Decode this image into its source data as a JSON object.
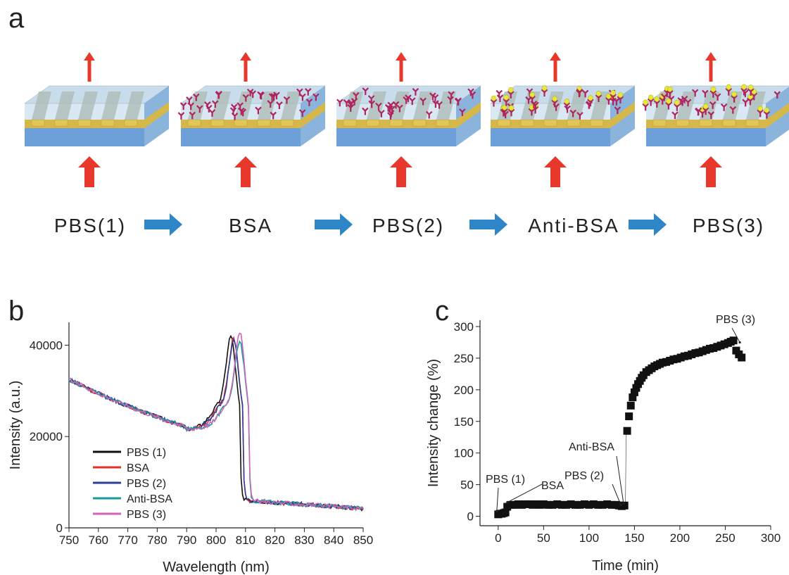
{
  "panels": {
    "a": "a",
    "b": "b",
    "c": "c"
  },
  "schematic": {
    "stages": [
      "PBS(1)",
      "BSA",
      "PBS(2)",
      "Anti-BSA",
      "PBS(3)"
    ],
    "colors": {
      "substrate": "#6d9fd8",
      "gold": "#d6b84a",
      "cover": "#cfe2f0",
      "arrow_red": "#e8382b",
      "arrow_blue": "#2e86c8",
      "bsa": "#b0245e",
      "antibody": "#e8e83a"
    }
  },
  "chart_data": [
    {
      "panel": "b",
      "type": "line",
      "xlabel": "Wavelength (nm)",
      "ylabel": "Intensity (a.u.)",
      "xlim": [
        750,
        850
      ],
      "ylim": [
        0,
        45000
      ],
      "xticks": [
        750,
        760,
        770,
        780,
        790,
        800,
        810,
        820,
        830,
        840,
        850
      ],
      "yticks": [
        0,
        20000,
        40000
      ],
      "legend": "lower-left",
      "series": [
        {
          "name": "PBS (1)",
          "color": "#111111",
          "peak": 805,
          "peak_value": 42000
        },
        {
          "name": "BSA",
          "color": "#e53228",
          "peak": 806,
          "peak_value": 41500
        },
        {
          "name": "PBS (2)",
          "color": "#2e3f9a",
          "peak": 806,
          "peak_value": 41000
        },
        {
          "name": "Anti-BSA",
          "color": "#1a9a9a",
          "peak": 808,
          "peak_value": 41000
        },
        {
          "name": "PBS (3)",
          "color": "#cc66bb",
          "peak": 808,
          "peak_value": 43000
        }
      ]
    },
    {
      "panel": "c",
      "type": "scatter",
      "xlabel": "Time (min)",
      "ylabel": "Intensity change (%)",
      "xlim": [
        -20,
        300
      ],
      "ylim": [
        -15,
        310
      ],
      "xticks": [
        0,
        50,
        100,
        150,
        200,
        250,
        300
      ],
      "yticks": [
        0,
        50,
        100,
        150,
        200,
        250,
        300
      ],
      "x": [
        0,
        2,
        4,
        6,
        8,
        10,
        14,
        18,
        22,
        26,
        30,
        34,
        38,
        42,
        46,
        50,
        55,
        60,
        65,
        70,
        75,
        80,
        85,
        90,
        95,
        100,
        105,
        110,
        115,
        120,
        125,
        130,
        133,
        136,
        139,
        142,
        144,
        146,
        148,
        150,
        152,
        154,
        156,
        158,
        160,
        163,
        166,
        169,
        172,
        175,
        178,
        181,
        185,
        189,
        193,
        197,
        201,
        205,
        209,
        213,
        217,
        221,
        225,
        229,
        233,
        237,
        241,
        245,
        249,
        253,
        256,
        259,
        262,
        265,
        268
      ],
      "y": [
        3,
        4,
        4,
        5,
        6,
        15,
        18,
        18,
        19,
        18,
        19,
        19,
        18,
        19,
        18,
        19,
        18,
        18,
        19,
        18,
        18,
        19,
        18,
        18,
        19,
        18,
        19,
        18,
        18,
        19,
        18,
        18,
        17,
        16,
        17,
        135,
        158,
        175,
        188,
        196,
        203,
        209,
        214,
        219,
        223,
        228,
        231,
        234,
        237,
        239,
        241,
        243,
        244,
        246,
        248,
        249,
        251,
        253,
        254,
        256,
        258,
        259,
        261,
        263,
        265,
        266,
        268,
        270,
        272,
        274,
        276,
        278,
        262,
        256,
        251
      ],
      "annotations": [
        {
          "text": "PBS (1)",
          "x": 0
        },
        {
          "text": "BSA",
          "x": 10
        },
        {
          "text": "PBS (2)",
          "x": 136
        },
        {
          "text": "Anti-BSA",
          "x": 140
        },
        {
          "text": "PBS (3)",
          "x": 262
        }
      ]
    }
  ]
}
